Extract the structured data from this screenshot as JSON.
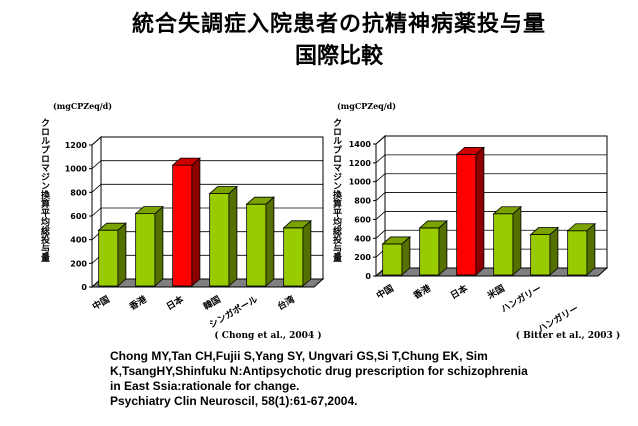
{
  "title": {
    "line1": "統合失調症入院患者の抗精神病薬投与量",
    "line2": "国際比較"
  },
  "colors": {
    "bar_green": "#99cc00",
    "bar_red": "#ff0000",
    "floor": "#808080"
  },
  "chart_data": [
    {
      "type": "bar",
      "unit_label": "(mgCPZeq/d)",
      "ylabel": "クロルプロマジン換算平均総投与量",
      "ylim": [
        0,
        1200
      ],
      "yticks": [
        0,
        200,
        400,
        600,
        800,
        1000,
        1200
      ],
      "categories": [
        "中国",
        "香港",
        "日本",
        "韓国",
        "シンガポール",
        "台湾"
      ],
      "values": [
        480,
        620,
        1030,
        790,
        700,
        500
      ],
      "highlight": "日本",
      "source": "Chong et al., 2004"
    },
    {
      "type": "bar",
      "unit_label": "(mgCPZeq/d)",
      "ylabel": "クロルプロマジン換算平均総投与量",
      "ylim": [
        0,
        1400
      ],
      "yticks": [
        0,
        200,
        400,
        600,
        800,
        1000,
        1200,
        1400
      ],
      "categories": [
        "中国",
        "香港",
        "日本",
        "米国",
        "ハンガリー",
        "ハンガリー"
      ],
      "values": [
        340,
        510,
        1290,
        660,
        440,
        480
      ],
      "highlight": "日本",
      "source": "Bitter et al., 2003"
    }
  ],
  "citation": {
    "line1": "Chong MY,Tan CH,Fujii S,Yang SY, Ungvari GS,Si T,Chung EK, Sim",
    "line2": "K,TsangHY,Shinfuku N:Antipsychotic drug prescription for schizophrenia",
    "line3": "in East Ssia:rationale for change.",
    "line4": " Psychiatry Clin Neuroscil, 58(1):61-67,2004."
  }
}
